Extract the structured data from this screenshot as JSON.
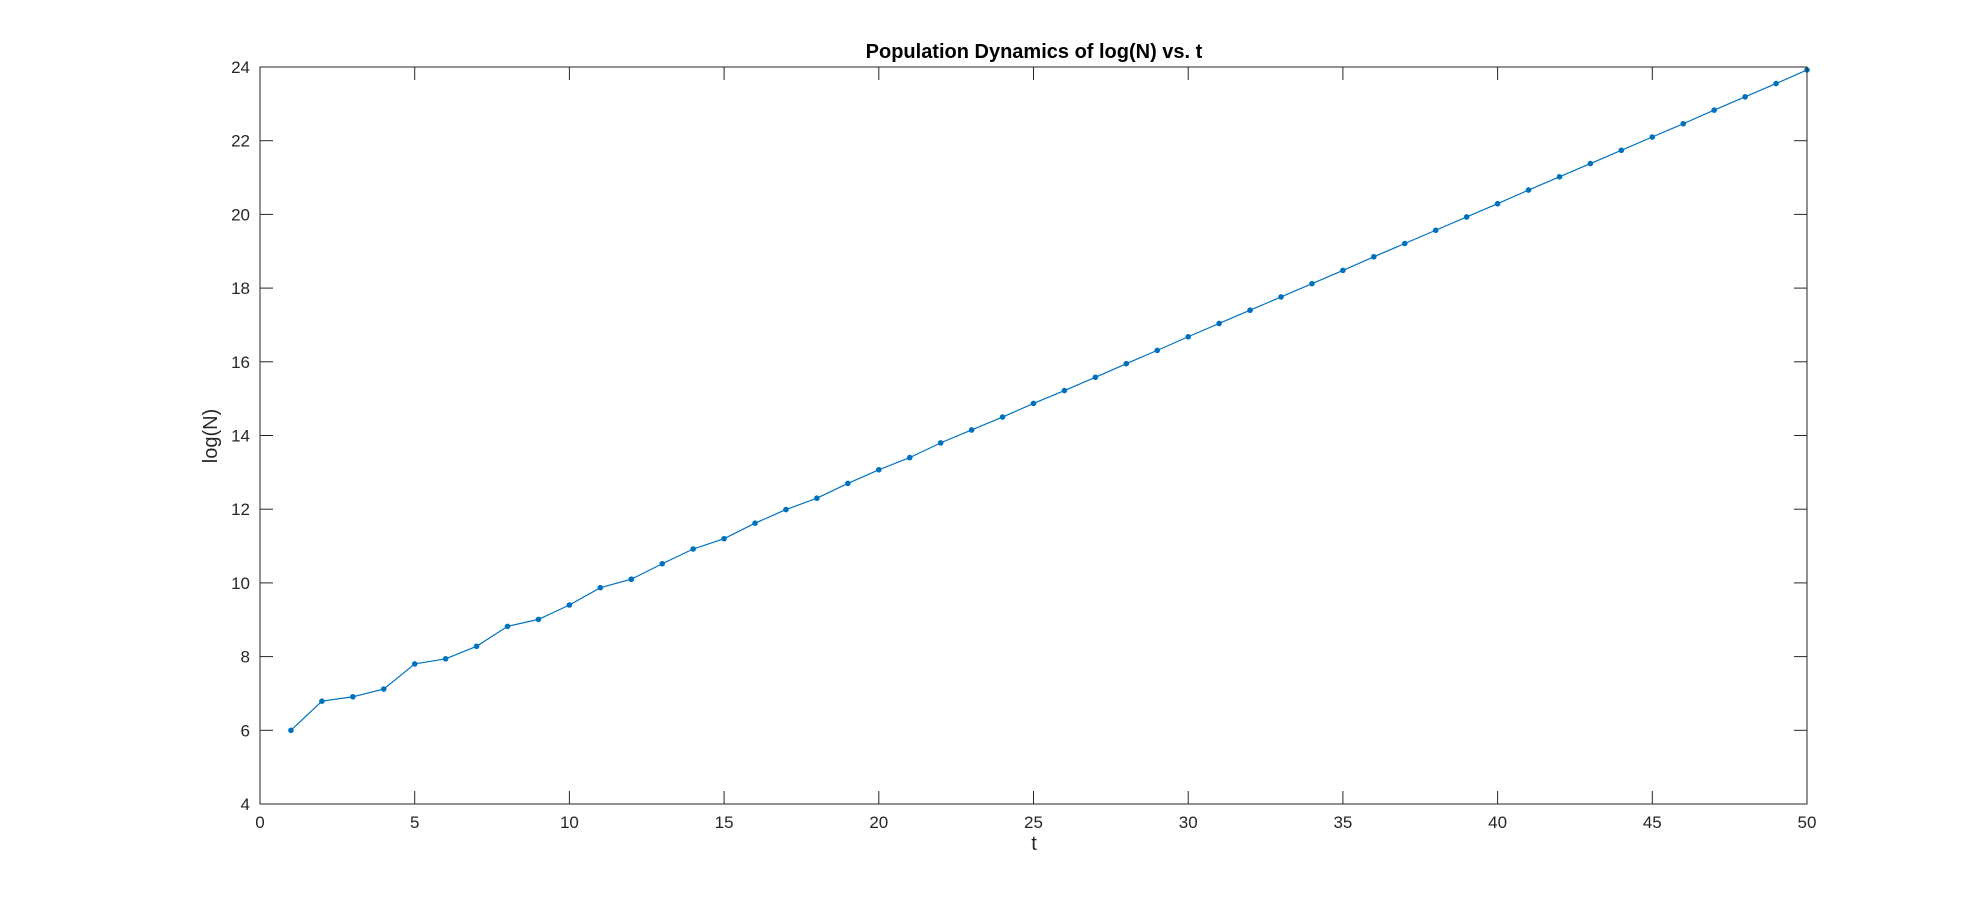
{
  "chart_data": {
    "type": "line",
    "title": "Population Dynamics of log(N) vs. t",
    "xlabel": "t",
    "ylabel": "log(N)",
    "xlim": [
      0,
      50
    ],
    "ylim": [
      4,
      24
    ],
    "xticks": [
      0,
      5,
      10,
      15,
      20,
      25,
      30,
      35,
      40,
      45,
      50
    ],
    "yticks": [
      4,
      6,
      8,
      10,
      12,
      14,
      16,
      18,
      20,
      22,
      24
    ],
    "grid": false,
    "legend": "none",
    "series": [
      {
        "color": "#0072BD",
        "marker": "dot",
        "x": [
          1,
          2,
          3,
          4,
          5,
          6,
          7,
          8,
          9,
          10,
          11,
          12,
          13,
          14,
          15,
          16,
          17,
          18,
          19,
          20,
          21,
          22,
          23,
          24,
          25,
          26,
          27,
          28,
          29,
          30,
          31,
          32,
          33,
          34,
          35,
          36,
          37,
          38,
          39,
          40,
          41,
          42,
          43,
          44,
          45,
          46,
          47,
          48,
          49,
          50
        ],
        "y": [
          6.0,
          6.79,
          6.91,
          7.12,
          7.8,
          7.94,
          8.28,
          8.82,
          9.01,
          9.4,
          9.87,
          10.1,
          10.52,
          10.92,
          11.2,
          11.62,
          11.99,
          12.3,
          12.7,
          13.07,
          13.4,
          13.8,
          14.15,
          14.5,
          14.87,
          15.22,
          15.58,
          15.95,
          16.31,
          16.68,
          17.04,
          17.4,
          17.76,
          18.12,
          18.48,
          18.85,
          19.21,
          19.57,
          19.93,
          20.29,
          20.66,
          21.02,
          21.38,
          21.74,
          22.1,
          22.46,
          22.83,
          23.19,
          23.55,
          23.92
        ]
      }
    ]
  }
}
